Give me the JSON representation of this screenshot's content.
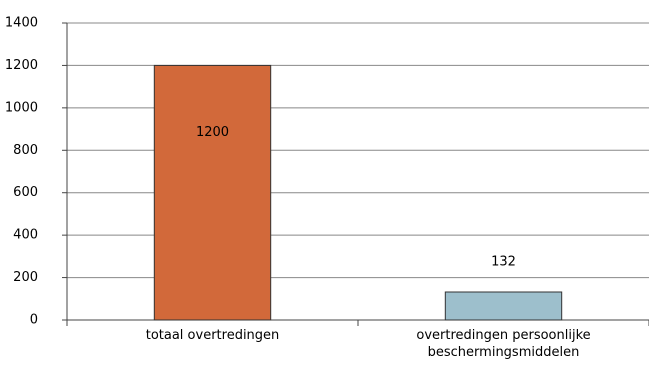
{
  "chart_data": {
    "type": "bar",
    "categories": [
      "totaal overtredingen",
      "overtredingen persoonlijke beschermingsmiddelen"
    ],
    "values": [
      1200,
      132
    ],
    "colors": [
      "#d2693a",
      "#9dbfcc"
    ],
    "ylim": [
      0,
      1400
    ],
    "yticks": [
      0,
      200,
      400,
      600,
      800,
      1000,
      1200,
      1400
    ],
    "grid": true
  }
}
